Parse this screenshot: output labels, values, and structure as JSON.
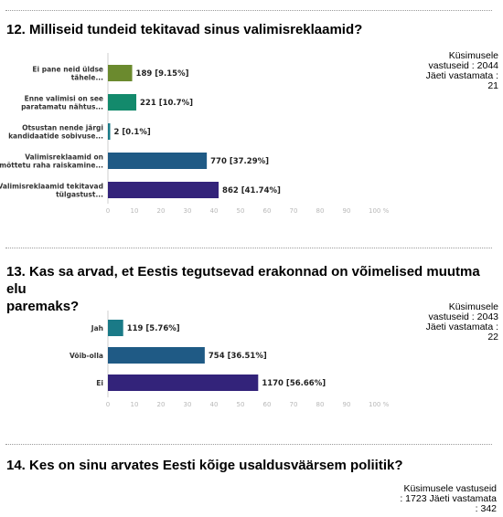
{
  "questions": [
    {
      "title": "12. Milliseid tundeid tekitavad sinus valimisreklaamid?",
      "stats": [
        "Küsimusele",
        "vastuseid : 2044",
        "Jäeti vastamata :",
        "21"
      ]
    },
    {
      "title_lines": [
        "13. Kas sa arvad, et Eestis tegutsevad erakonnad on võimelised muutma elu",
        "paremaks?"
      ],
      "stats": [
        "Küsimusele",
        "vastuseid : 2043",
        "Jäeti vastamata :",
        "22"
      ]
    },
    {
      "title": "14. Kes on sinu arvates Eesti kõige usaldusväärsem poliitik?",
      "stats": [
        "Küsimusele vastuseid",
        ": 1723 Jäeti vastamata",
        ": 342"
      ]
    }
  ],
  "chart_data": [
    {
      "type": "bar",
      "orientation": "horizontal",
      "categories": [
        [
          "Ei pane neid üldse",
          "tähele..."
        ],
        [
          "Enne valimisi on see",
          "paratamatu nähtus..."
        ],
        [
          "Otsustan nende järgi",
          "kandidaatide sobivuse..."
        ],
        [
          "Valimisreklaamid on",
          "mõttetu raha raiskamine..."
        ],
        [
          "Valimisreklaamid tekitavad",
          "tülgastust..."
        ]
      ],
      "values": [
        9.15,
        10.7,
        0.1,
        37.29,
        41.74
      ],
      "value_labels": [
        "189 [9.15%]",
        "221 [10.7%]",
        "2 [0.1%]",
        "770 [37.29%]",
        "862 [41.74%]"
      ],
      "colors": [
        "#6b8a2e",
        "#138a6c",
        "#1a7a87",
        "#1f5a85",
        "#33237a"
      ],
      "xlim": [
        0,
        100
      ],
      "ticks": [
        "0",
        "10",
        "20",
        "30",
        "40",
        "50",
        "60",
        "70",
        "80",
        "90",
        "100 %"
      ]
    },
    {
      "type": "bar",
      "orientation": "horizontal",
      "categories": [
        [
          "Jah"
        ],
        [
          "Võib-olla"
        ],
        [
          "Ei"
        ]
      ],
      "values": [
        5.76,
        36.51,
        56.66
      ],
      "value_labels": [
        "119 [5.76%]",
        "754 [36.51%]",
        "1170 [56.66%]"
      ],
      "colors": [
        "#1a7a87",
        "#1f5a85",
        "#33237a"
      ],
      "xlim": [
        0,
        100
      ],
      "ticks": [
        "0",
        "10",
        "20",
        "30",
        "40",
        "50",
        "60",
        "70",
        "80",
        "90",
        "100 %"
      ]
    }
  ]
}
